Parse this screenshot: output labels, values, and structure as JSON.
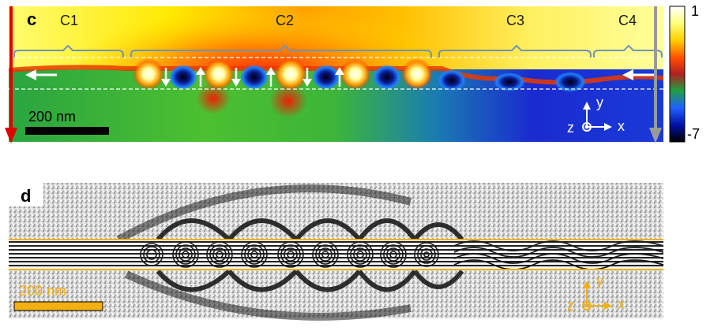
{
  "panel_c": {
    "letter": "c",
    "regions": [
      "C1",
      "C2",
      "C3",
      "C4"
    ],
    "scalebar_label": "200 nm",
    "colorbar": {
      "max_label": "1",
      "min_label": "-7"
    },
    "axes": {
      "y": "y",
      "x": "x",
      "z": "z"
    }
  },
  "panel_d": {
    "letter": "d",
    "scalebar_label": "200 nm",
    "axes": {
      "y": "y",
      "x": "x",
      "z": "z"
    }
  },
  "colors": {
    "red_arrow": "#e00000",
    "grey_arrow": "#9a9a9a",
    "bracket": "#6f94b8",
    "orange": "#f2b011"
  }
}
